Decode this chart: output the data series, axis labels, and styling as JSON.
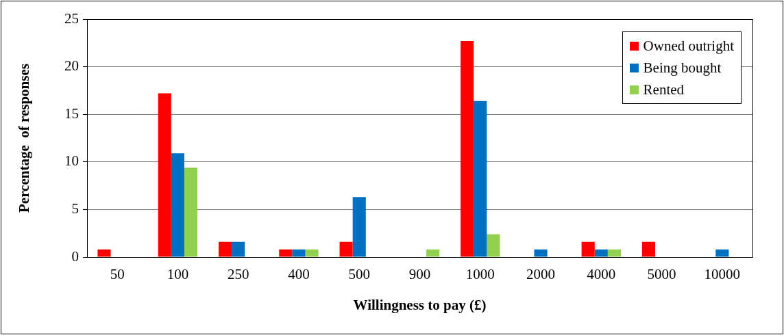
{
  "chart_data": {
    "type": "bar",
    "xlabel": "Willingness to pay (£)",
    "ylabel": "Percentage  of responses",
    "categories": [
      "50",
      "100",
      "250",
      "400",
      "500",
      "900",
      "1000",
      "2000",
      "4000",
      "5000",
      "10000"
    ],
    "series": [
      {
        "name": "Owned outright",
        "color": "#ff0000",
        "values": [
          0.8,
          17.2,
          1.6,
          0.8,
          1.6,
          0,
          22.7,
          0,
          1.6,
          1.6,
          0
        ]
      },
      {
        "name": "Being bought",
        "color": "#0070c0",
        "values": [
          0,
          10.9,
          1.6,
          0.8,
          6.3,
          0,
          16.4,
          0.8,
          0.8,
          0,
          0.8
        ]
      },
      {
        "name": "Rented",
        "color": "#92d050",
        "values": [
          0,
          9.4,
          0,
          0.8,
          0,
          0.8,
          2.4,
          0,
          0.8,
          0,
          0
        ]
      }
    ],
    "ylim": [
      0,
      25
    ],
    "yticks": [
      0,
      5,
      10,
      15,
      20,
      25
    ],
    "grid": "y",
    "legend": "top right"
  }
}
